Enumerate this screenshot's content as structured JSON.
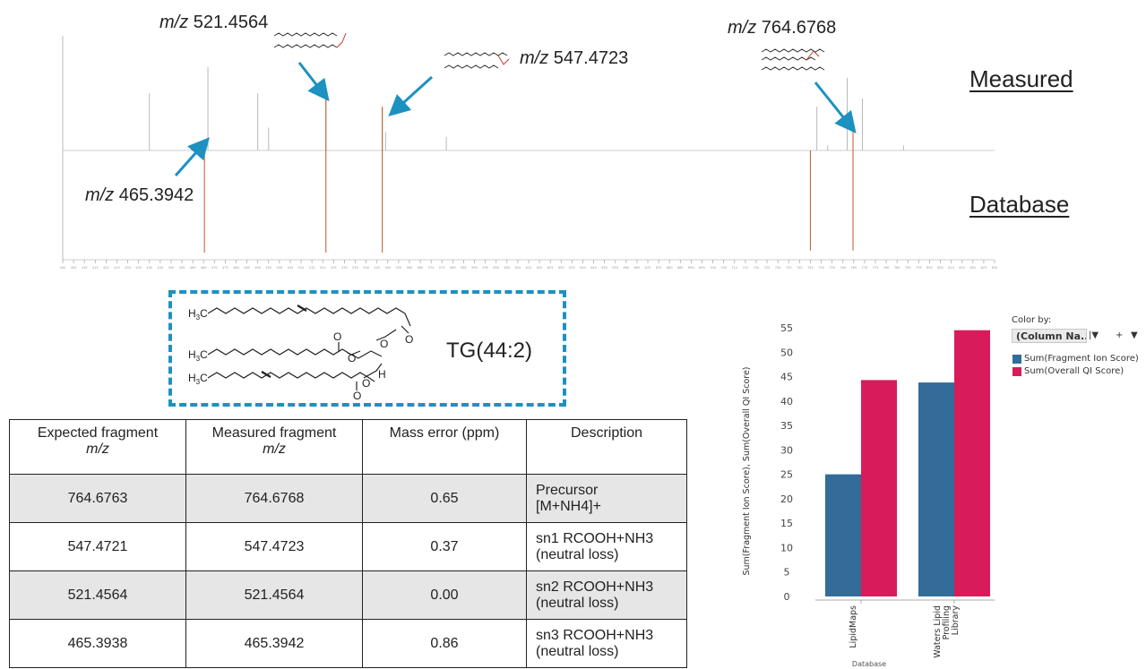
{
  "spectrum": {
    "annotations": {
      "a521": {
        "prefix": "m/z",
        "value": "521.4564"
      },
      "a547": {
        "prefix": "m/z",
        "value": "547.4723"
      },
      "a764": {
        "prefix": "m/z",
        "value": "764.6768"
      },
      "a465": {
        "prefix": "m/z",
        "value": "465.3942"
      }
    },
    "measured_label": "Measured",
    "database_label": "Database",
    "arrow_color": "#1d91c0",
    "line_color": "#c0552e"
  },
  "structure": {
    "name": "TG(44:2)",
    "atoms": {
      "h3c": "H",
      "sub3": "3",
      "c": "C",
      "o": "O",
      "h": "H"
    },
    "box_color": "#1d91c0"
  },
  "table": {
    "headers": {
      "expected_line1": "Expected fragment",
      "expected_line2": "m/z",
      "measured_line1": "Measured fragment",
      "measured_line2": "m/z",
      "error": "Mass error (ppm)",
      "description": "Description"
    },
    "rows": [
      {
        "expected": "764.6763",
        "measured": "764.6768",
        "error": "0.65",
        "desc1": "Precursor",
        "desc2": "[M+NH4]+"
      },
      {
        "expected": "547.4721",
        "measured": "547.4723",
        "error": "0.37",
        "desc1": "sn1 RCOOH+NH3",
        "desc2": "(neutral loss)"
      },
      {
        "expected": "521.4564",
        "measured": "521.4564",
        "error": "0.00",
        "desc1": "sn2 RCOOH+NH3",
        "desc2": "(neutral loss)"
      },
      {
        "expected": "465.3938",
        "measured": "465.3942",
        "error": "0.86",
        "desc1": "sn3 RCOOH+NH3",
        "desc2": "(neutral loss)"
      }
    ]
  },
  "legend": {
    "title": "Color by:",
    "selector": "(Column Na...",
    "items": [
      {
        "label": "Sum(Fragment Ion Score)",
        "color": "#336b99"
      },
      {
        "label": "Sum(Overall QI Score)",
        "color": "#d81b5b"
      }
    ]
  },
  "chart_data": [
    {
      "type": "bar",
      "categories": [
        "LipidMaps",
        "Waters Lipid Profiling Library"
      ],
      "category_lines": [
        [
          "LipidMaps"
        ],
        [
          "Waters Lipid",
          "Profiling",
          "Library"
        ]
      ],
      "series": [
        {
          "name": "Sum(Fragment Ion Score)",
          "values": [
            25,
            43.8
          ],
          "color": "#336b99"
        },
        {
          "name": "Sum(Overall QI Score)",
          "values": [
            44.3,
            54.5
          ],
          "color": "#d81b5b"
        }
      ],
      "xlabel": "Database",
      "ylabel": "Sum(Fragment Ion Score), Sum(Overall QI Score)",
      "ylim": [
        0,
        55
      ],
      "yticks": [
        0,
        5,
        10,
        15,
        20,
        25,
        30,
        35,
        40,
        45,
        50,
        55
      ],
      "grid": false,
      "legend": "right"
    },
    {
      "type": "bar",
      "subtype": "mirror-spectrum",
      "xrange": [
        400,
        830
      ],
      "measured_peaks": [
        {
          "mz": 440,
          "rel": 0.55
        },
        {
          "mz": 465.3942,
          "rel": 0.1
        },
        {
          "mz": 467,
          "rel": 0.8
        },
        {
          "mz": 490,
          "rel": 0.55
        },
        {
          "mz": 495,
          "rel": 0.22
        },
        {
          "mz": 521.4564,
          "rel": 0.5
        },
        {
          "mz": 547.4723,
          "rel": 0.42
        },
        {
          "mz": 549,
          "rel": 0.18
        },
        {
          "mz": 577,
          "rel": 0.13
        },
        {
          "mz": 748,
          "rel": 0.42
        },
        {
          "mz": 753,
          "rel": 0.05
        },
        {
          "mz": 762,
          "rel": 0.7
        },
        {
          "mz": 764.6768,
          "rel": 0.2
        },
        {
          "mz": 769,
          "rel": 0.5
        },
        {
          "mz": 788,
          "rel": 0.05
        }
      ],
      "database_peaks": [
        {
          "mz": 465.3938,
          "rel": 1.0
        },
        {
          "mz": 521.4564,
          "rel": 1.0
        },
        {
          "mz": 547.4721,
          "rel": 1.0
        },
        {
          "mz": 745,
          "rel": 0.98
        },
        {
          "mz": 764.6763,
          "rel": 0.98
        }
      ],
      "ticks": [
        400,
        405,
        410,
        415,
        420,
        425,
        430,
        435,
        440,
        445,
        450,
        455,
        460,
        465,
        470,
        475,
        480,
        485,
        490,
        495,
        500,
        505,
        510,
        515,
        520,
        525,
        530,
        535,
        540,
        545,
        550,
        555,
        560,
        565,
        570,
        575,
        580,
        585,
        590,
        595,
        600,
        605,
        610,
        615,
        620,
        625,
        630,
        635,
        640,
        645,
        650,
        655,
        660,
        665,
        670,
        675,
        680,
        685,
        690,
        695,
        700,
        705,
        710,
        715,
        720,
        725,
        730,
        735,
        740,
        745,
        750,
        755,
        760,
        765,
        770,
        775,
        780,
        785,
        790,
        795,
        800,
        805,
        810,
        815,
        820,
        825,
        830
      ]
    }
  ]
}
